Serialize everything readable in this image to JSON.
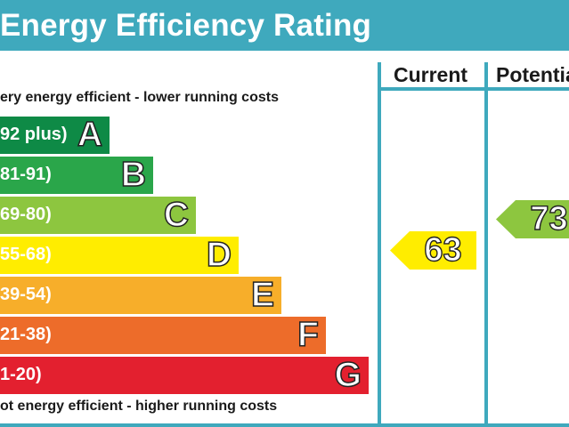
{
  "title": "Energy Efficiency Rating",
  "columns": {
    "current": "Current",
    "potential": "Potentia"
  },
  "captions": {
    "top": "ery energy efficient - lower running costs",
    "bottom": "ot energy efficient - higher running costs"
  },
  "chart_data": {
    "type": "bar",
    "title": "Energy Efficiency Rating",
    "categories": [
      "A",
      "B",
      "C",
      "D",
      "E",
      "F",
      "G"
    ],
    "bands": [
      {
        "letter": "A",
        "range": "92 plus)",
        "color": "#0e8a46"
      },
      {
        "letter": "B",
        "range": "81-91)",
        "color": "#2aa64a"
      },
      {
        "letter": "C",
        "range": "69-80)",
        "color": "#8dc63f"
      },
      {
        "letter": "D",
        "range": "55-68)",
        "color": "#ffed00"
      },
      {
        "letter": "E",
        "range": "39-54)",
        "color": "#f7ae2a"
      },
      {
        "letter": "F",
        "range": "21-38)",
        "color": "#ed6c2a"
      },
      {
        "letter": "G",
        "range": "1-20)",
        "color": "#e3202f"
      }
    ],
    "ratings": {
      "current": {
        "value": 63,
        "band": "D",
        "color": "#ffed00"
      },
      "potential": {
        "value": 73,
        "band": "C",
        "color": "#8dc63f"
      }
    }
  }
}
